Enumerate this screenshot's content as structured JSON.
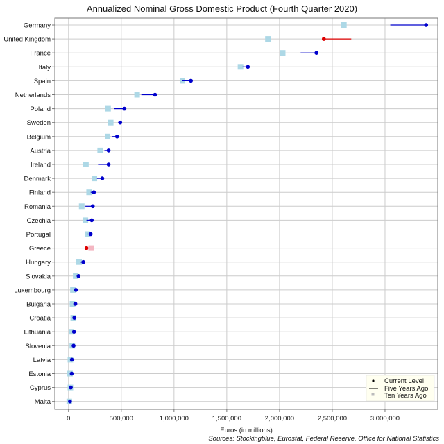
{
  "chart_data": {
    "type": "scatter",
    "title": "Annualized Nominal Gross Domestic Product (Fourth Quarter 2020)",
    "xlabel": "Euros (in millions)",
    "source": "Sources: Stockingblue, Eurostat, Federal Reserve, Office for National Statistics",
    "xlim": [
      -130000,
      3500000
    ],
    "xticks": [
      0,
      500000,
      1000000,
      1500000,
      2000000,
      2500000,
      3000000
    ],
    "xtick_labels": [
      "0",
      "500,000",
      "1,000,000",
      "1,500,000",
      "2,000,000",
      "2,500,000",
      "3,000,000"
    ],
    "grid": true,
    "legend": {
      "placement": "bottom-right",
      "entries": [
        "Current Level",
        "Five Years Ago",
        "Ten Years Ago"
      ]
    },
    "colors": {
      "growth": "#0000cc",
      "decline": "#dd0000",
      "ten_years_ago": "#add8e6",
      "ten_years_ago_decline": "#f4b6c2",
      "grid": "#cccccc",
      "legend_bg": "#fffff0"
    },
    "categories": [
      "Germany",
      "United Kingdom",
      "France",
      "Italy",
      "Spain",
      "Netherlands",
      "Poland",
      "Sweden",
      "Belgium",
      "Austria",
      "Ireland",
      "Denmark",
      "Finland",
      "Romania",
      "Czechia",
      "Portugal",
      "Greece",
      "Hungary",
      "Slovakia",
      "Luxembourg",
      "Bulgaria",
      "Croatia",
      "Lithuania",
      "Slovenia",
      "Latvia",
      "Estonia",
      "Cyprus",
      "Malta"
    ],
    "series": [
      {
        "name": "Current Level",
        "values": [
          3390000,
          2420000,
          2350000,
          1700000,
          1160000,
          820000,
          530000,
          490000,
          460000,
          380000,
          380000,
          320000,
          240000,
          230000,
          220000,
          210000,
          170000,
          140000,
          95000,
          70000,
          65000,
          55000,
          52000,
          48000,
          32000,
          30000,
          22000,
          14000
        ]
      },
      {
        "name": "Five Years Ago",
        "values": [
          3050000,
          2680000,
          2200000,
          1650000,
          1080000,
          690000,
          430000,
          470000,
          410000,
          340000,
          280000,
          270000,
          210000,
          160000,
          170000,
          180000,
          175000,
          110000,
          80000,
          52000,
          45000,
          45000,
          37000,
          40000,
          24000,
          20000,
          17000,
          10000
        ]
      },
      {
        "name": "Ten Years Ago",
        "values": [
          2610000,
          1890000,
          2030000,
          1630000,
          1080000,
          650000,
          375000,
          400000,
          370000,
          300000,
          165000,
          245000,
          195000,
          125000,
          160000,
          180000,
          215000,
          100000,
          68000,
          42000,
          38000,
          45000,
          28000,
          36000,
          18000,
          15000,
          18000,
          7000
        ]
      }
    ]
  }
}
